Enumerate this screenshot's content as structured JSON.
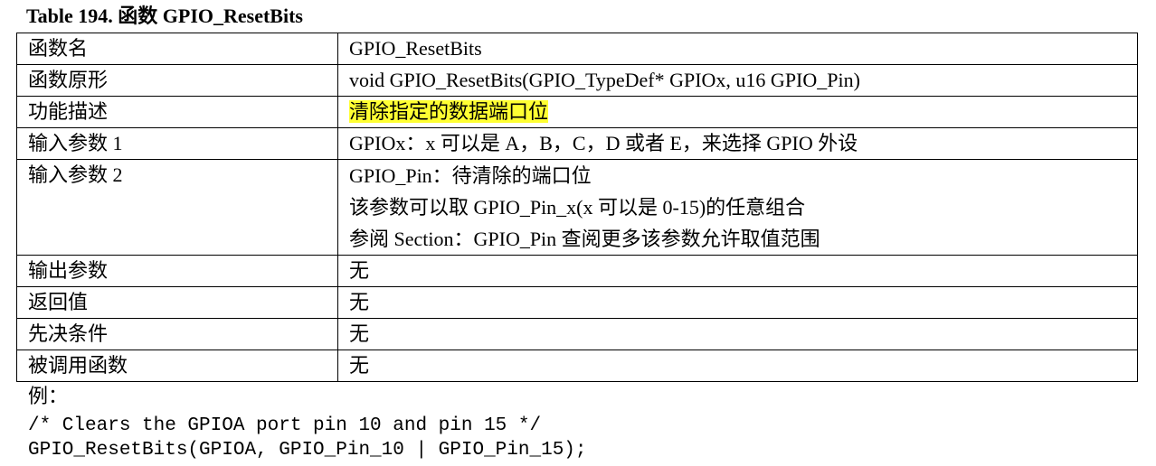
{
  "title": "Table 194.  函数 GPIO_ResetBits",
  "rows": [
    {
      "label": "函数名",
      "value": "GPIO_ResetBits"
    },
    {
      "label": "函数原形",
      "value": "void GPIO_ResetBits(GPIO_TypeDef* GPIOx, u16 GPIO_Pin)"
    },
    {
      "label": "功能描述",
      "value": "清除指定的数据端口位"
    },
    {
      "label": "输入参数 1",
      "value": "GPIOx：x 可以是 A，B，C，D 或者 E，来选择 GPIO 外设"
    },
    {
      "label": "输入参数 2",
      "lines": [
        "GPIO_Pin：待清除的端口位",
        "该参数可以取 GPIO_Pin_x(x 可以是 0-15)的任意组合",
        "参阅 Section：GPIO_Pin 查阅更多该参数允许取值范围"
      ]
    },
    {
      "label": "输出参数",
      "value": "无"
    },
    {
      "label": "返回值",
      "value": "无"
    },
    {
      "label": "先决条件",
      "value": "无"
    },
    {
      "label": "被调用函数",
      "value": "无"
    }
  ],
  "highlight_color": "#ffff33",
  "example": {
    "label": "例：",
    "code_lines": [
      "/* Clears the GPIOA port pin 10 and pin 15 */",
      "GPIO_ResetBits(GPIOA, GPIO_Pin_10 | GPIO_Pin_15);"
    ]
  }
}
